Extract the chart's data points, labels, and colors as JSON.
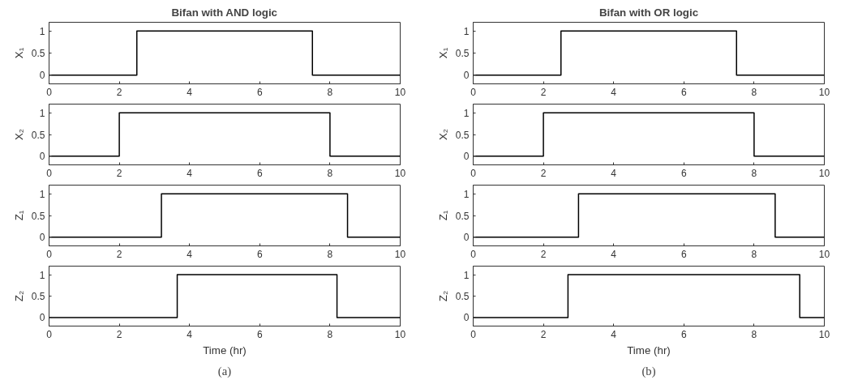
{
  "chart_data": [
    {
      "type": "step",
      "title": "Bifan with AND logic",
      "ylabel": "X₁",
      "x": [
        0,
        2.5,
        7.5,
        10
      ],
      "values": [
        0,
        1,
        0,
        0
      ],
      "color": "#000000",
      "xlim": [
        0,
        10
      ],
      "ylim": [
        -0.2,
        1.2
      ],
      "xticks": [
        0,
        2,
        4,
        6,
        8,
        10
      ],
      "yticks": [
        0,
        0.5,
        1
      ]
    },
    {
      "type": "step",
      "ylabel": "X₂",
      "x": [
        0,
        2,
        8,
        10
      ],
      "values": [
        0,
        1,
        0,
        0
      ],
      "color": "#000000",
      "xlim": [
        0,
        10
      ],
      "ylim": [
        -0.2,
        1.2
      ],
      "xticks": [
        0,
        2,
        4,
        6,
        8,
        10
      ],
      "yticks": [
        0,
        0.5,
        1
      ]
    },
    {
      "type": "step",
      "ylabel": "Z₁",
      "x": [
        0,
        3.2,
        8.5,
        10
      ],
      "values": [
        0,
        1,
        0,
        0
      ],
      "color": "#000000",
      "xlim": [
        0,
        10
      ],
      "ylim": [
        -0.2,
        1.2
      ],
      "xticks": [
        0,
        2,
        4,
        6,
        8,
        10
      ],
      "yticks": [
        0,
        0.5,
        1
      ]
    },
    {
      "type": "step",
      "ylabel": "Z₂",
      "xlabel": "Time (hr)",
      "annotations": [
        "(a)"
      ],
      "x": [
        0,
        3.65,
        8.2,
        10
      ],
      "values": [
        0,
        1,
        0,
        0
      ],
      "color": "#000000",
      "xlim": [
        0,
        10
      ],
      "ylim": [
        -0.2,
        1.2
      ],
      "xticks": [
        0,
        2,
        4,
        6,
        8,
        10
      ],
      "yticks": [
        0,
        0.5,
        1
      ]
    },
    {
      "type": "step",
      "title": "Bifan with OR logic",
      "ylabel": "X₁",
      "x": [
        0,
        2.5,
        7.5,
        10
      ],
      "values": [
        0,
        1,
        0,
        0
      ],
      "color": "#000000",
      "xlim": [
        0,
        10
      ],
      "ylim": [
        -0.2,
        1.2
      ],
      "xticks": [
        0,
        2,
        4,
        6,
        8,
        10
      ],
      "yticks": [
        0,
        0.5,
        1
      ]
    },
    {
      "type": "step",
      "ylabel": "X₂",
      "x": [
        0,
        2,
        8,
        10
      ],
      "values": [
        0,
        1,
        0,
        0
      ],
      "color": "#000000",
      "xlim": [
        0,
        10
      ],
      "ylim": [
        -0.2,
        1.2
      ],
      "xticks": [
        0,
        2,
        4,
        6,
        8,
        10
      ],
      "yticks": [
        0,
        0.5,
        1
      ]
    },
    {
      "type": "step",
      "ylabel": "Z₁",
      "x": [
        0,
        3,
        8.6,
        10
      ],
      "values": [
        0,
        1,
        0,
        0
      ],
      "color": "#000000",
      "xlim": [
        0,
        10
      ],
      "ylim": [
        -0.2,
        1.2
      ],
      "xticks": [
        0,
        2,
        4,
        6,
        8,
        10
      ],
      "yticks": [
        0,
        0.5,
        1
      ]
    },
    {
      "type": "step",
      "ylabel": "Z₂",
      "xlabel": "Time (hr)",
      "annotations": [
        "(b)"
      ],
      "x": [
        0,
        2.7,
        9.3,
        10
      ],
      "values": [
        0,
        1,
        0,
        0
      ],
      "color": "#000000",
      "xlim": [
        0,
        10
      ],
      "ylim": [
        -0.2,
        1.2
      ],
      "xticks": [
        0,
        2,
        4,
        6,
        8,
        10
      ],
      "yticks": [
        0,
        0.5,
        1
      ]
    }
  ]
}
